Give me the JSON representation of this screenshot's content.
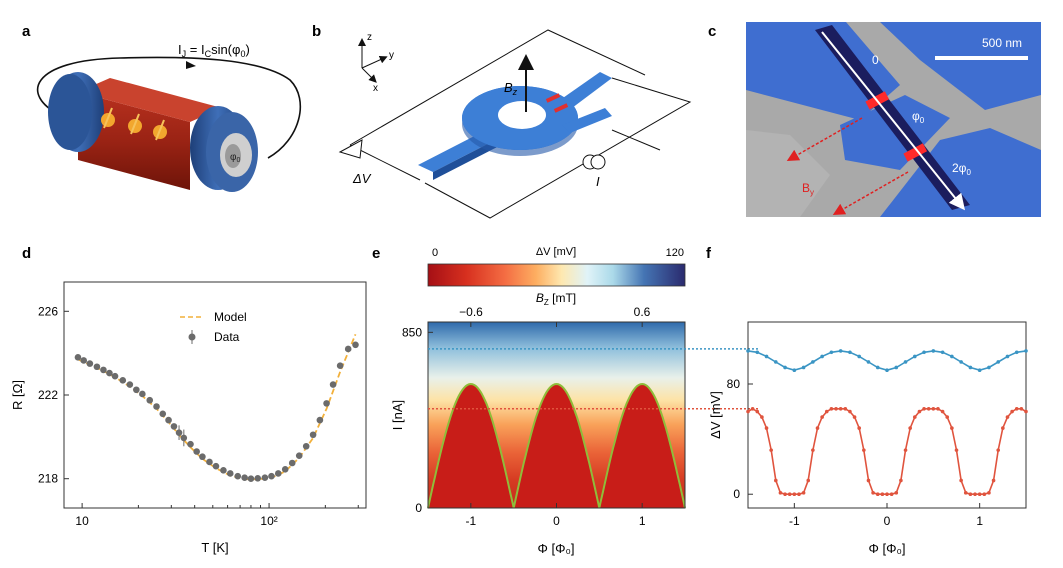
{
  "panels": {
    "a": {
      "letter": "a",
      "eq_lhs": "I",
      "eq_lhs_sub": "J",
      "eq_mid": " = I",
      "eq_mid_sub": "C",
      "eq_rhs": "sin(φ",
      "eq_rhs_sub": "0",
      "eq_close": ")",
      "phi_label": "φ",
      "phi_sub": "0"
    },
    "b": {
      "letter": "b",
      "axis_z": "z",
      "axis_y": "y",
      "axis_x": "x",
      "field_label": "B",
      "field_sub": "z",
      "voltage_label": "ΔV",
      "current_label": "I"
    },
    "c": {
      "letter": "c",
      "scale_label": "500 nm",
      "lead_0": "0",
      "lead_phi": "φ",
      "lead_phi_sub": "0",
      "lead_2phi": "2φ",
      "lead_2phi_sub": "0",
      "field_label": "B",
      "field_sub": "y"
    },
    "d": {
      "letter": "d"
    },
    "e": {
      "letter": "e",
      "colorbar_label": "ΔV [mV]",
      "colorbar_ticks": [
        "0",
        "120"
      ],
      "top_axis_label": "B",
      "top_axis_sub": "Z",
      "top_axis_unit": " [mT]",
      "top_ticks": [
        "−0.6",
        "0.6"
      ]
    },
    "f": {
      "letter": "f"
    }
  },
  "colors": {
    "red_line": "#e0543e",
    "blue_line": "#3a95c4",
    "model": "#f2b03a",
    "data_point": "#6b6b6b",
    "fit_green": "#8fbd3a",
    "device_blue": "#3d7fd6"
  },
  "chart_data": [
    {
      "id": "d",
      "type": "scatter",
      "title": "",
      "xlabel": "T [K]",
      "ylabel": "R [Ω]",
      "xscale": "log",
      "xlim": [
        8,
        330
      ],
      "ylim": [
        216.6,
        227.4
      ],
      "xticks": [
        10,
        100
      ],
      "xtick_labels": [
        "10",
        "10²"
      ],
      "yticks": [
        218,
        222,
        226
      ],
      "grid": false,
      "legend": "top-center",
      "series": [
        {
          "name": "Data",
          "kind": "points_with_errorbars",
          "x": [
            9.5,
            10.2,
            11,
            12,
            13,
            14,
            15,
            16.5,
            18,
            19.5,
            21,
            23,
            25,
            27,
            29,
            31,
            33,
            35,
            38,
            41,
            44,
            48,
            52,
            57,
            62,
            68,
            74,
            80,
            87,
            95,
            103,
            112,
            122,
            133,
            145,
            158,
            172,
            187,
            203,
            220,
            240,
            265,
            290
          ],
          "y": [
            223.8,
            223.65,
            223.5,
            223.35,
            223.2,
            223.05,
            222.9,
            222.7,
            222.5,
            222.25,
            222.05,
            221.75,
            221.45,
            221.1,
            220.8,
            220.5,
            220.2,
            219.95,
            219.65,
            219.3,
            219.05,
            218.8,
            218.6,
            218.4,
            218.25,
            218.12,
            218.05,
            218.0,
            218.02,
            218.05,
            218.12,
            218.25,
            218.45,
            218.75,
            219.1,
            219.55,
            220.1,
            220.8,
            221.6,
            222.5,
            223.4,
            224.2,
            224.4
          ],
          "err": [
            0,
            0,
            0,
            0,
            0,
            0,
            0,
            0,
            0,
            0,
            0,
            0,
            0,
            0,
            0,
            0,
            0.35,
            0.4,
            0,
            0,
            0,
            0,
            0,
            0,
            0,
            0,
            0,
            0,
            0,
            0,
            0,
            0,
            0,
            0,
            0,
            0,
            0,
            0,
            0,
            0,
            0,
            0,
            0
          ]
        },
        {
          "name": "Model",
          "kind": "dashed_line",
          "x": [
            9.5,
            11,
            13,
            15,
            18,
            21,
            25,
            29,
            33,
            38,
            44,
            52,
            62,
            74,
            87,
            103,
            122,
            145,
            172,
            203,
            240,
            290
          ],
          "y": [
            223.7,
            223.45,
            223.15,
            222.85,
            222.4,
            221.95,
            221.35,
            220.7,
            220.1,
            219.5,
            218.95,
            218.5,
            218.15,
            217.98,
            217.97,
            218.05,
            218.35,
            219.0,
            219.95,
            221.35,
            223.1,
            224.9
          ]
        }
      ]
    },
    {
      "id": "e",
      "type": "heatmap",
      "title": "",
      "xlabel": "Φ [Φ₀]",
      "ylabel": "I [nA]",
      "xlim": [
        -1.5,
        1.5
      ],
      "ylim": [
        0,
        900
      ],
      "xticks": [
        -1,
        0,
        1
      ],
      "yticks": [
        0,
        850
      ],
      "colorbar_range": [
        0,
        120
      ],
      "critical_current_peak": 600,
      "critical_current_period": 1,
      "fit_curve": "|cos(π Φ/Φ₀)|",
      "guides": [
        {
          "series": "blue",
          "y": 770
        },
        {
          "series": "red",
          "y": 480
        }
      ]
    },
    {
      "id": "f",
      "type": "line",
      "title": "",
      "xlabel": "Φ [Φ₀]",
      "ylabel": "ΔV [mV]",
      "xlim": [
        -1.5,
        1.5
      ],
      "ylim": [
        -10,
        125
      ],
      "xticks": [
        -1,
        0,
        1
      ],
      "yticks": [
        0,
        80
      ],
      "grid": false,
      "legend": "none",
      "series": [
        {
          "name": "",
          "color": "blue",
          "x": [
            -1.5,
            -1.4,
            -1.3,
            -1.2,
            -1.1,
            -1.0,
            -0.9,
            -0.8,
            -0.7,
            -0.6,
            -0.5,
            -0.4,
            -0.3,
            -0.2,
            -0.1,
            0.0,
            0.1,
            0.2,
            0.3,
            0.4,
            0.5,
            0.6,
            0.7,
            0.8,
            0.9,
            1.0,
            1.1,
            1.2,
            1.3,
            1.4,
            1.5
          ],
          "y": [
            104,
            103,
            100,
            96,
            92,
            90,
            92,
            96,
            100,
            103,
            104,
            103,
            100,
            96,
            92,
            90,
            92,
            96,
            100,
            103,
            104,
            103,
            100,
            96,
            92,
            90,
            92,
            96,
            100,
            103,
            104
          ]
        },
        {
          "name": "",
          "color": "red",
          "x": [
            -1.5,
            -1.45,
            -1.4,
            -1.35,
            -1.3,
            -1.25,
            -1.2,
            -1.15,
            -1.1,
            -1.05,
            -1.0,
            -0.95,
            -0.9,
            -0.85,
            -0.8,
            -0.75,
            -0.7,
            -0.65,
            -0.6,
            -0.55,
            -0.5,
            -0.45,
            -0.4,
            -0.35,
            -0.3,
            -0.25,
            -0.2,
            -0.15,
            -0.1,
            -0.05,
            0.0,
            0.05,
            0.1,
            0.15,
            0.2,
            0.25,
            0.3,
            0.35,
            0.4,
            0.45,
            0.5,
            0.55,
            0.6,
            0.65,
            0.7,
            0.75,
            0.8,
            0.85,
            0.9,
            0.95,
            1.0,
            1.05,
            1.1,
            1.15,
            1.2,
            1.25,
            1.3,
            1.35,
            1.4,
            1.45,
            1.5
          ],
          "y": [
            60,
            62,
            60,
            56,
            48,
            32,
            10,
            1,
            0,
            0,
            0,
            0,
            1,
            10,
            32,
            48,
            56,
            60,
            62,
            62,
            62,
            62,
            60,
            56,
            48,
            32,
            10,
            1,
            0,
            0,
            0,
            0,
            1,
            10,
            32,
            48,
            56,
            60,
            62,
            62,
            62,
            62,
            60,
            56,
            48,
            32,
            10,
            1,
            0,
            0,
            0,
            0,
            1,
            10,
            32,
            48,
            56,
            60,
            62,
            62,
            60
          ]
        }
      ]
    }
  ]
}
